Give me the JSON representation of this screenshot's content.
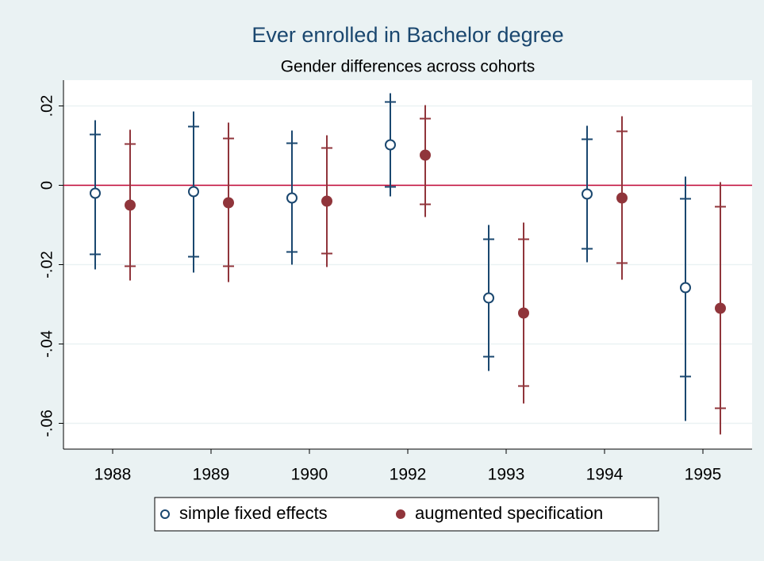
{
  "chart_data": {
    "type": "coefplot",
    "title": "Ever enrolled in Bachelor degree",
    "subtitle": "Gender differences across cohorts",
    "categories": [
      "1988",
      "1989",
      "1990",
      "1992",
      "1993",
      "1994",
      "1995"
    ],
    "series": [
      {
        "name": "simple fixed effects",
        "color": "#1a476f",
        "marker": "hollow",
        "values": [
          -0.002,
          -0.0016,
          -0.0032,
          0.0102,
          -0.0284,
          -0.0022,
          -0.0258
        ],
        "ci95_low": [
          -0.0212,
          -0.022,
          -0.02,
          -0.0028,
          -0.0468,
          -0.0194,
          -0.0594
        ],
        "ci95_high": [
          0.0164,
          0.0186,
          0.0138,
          0.0232,
          -0.01,
          0.015,
          0.0022
        ],
        "ci90_low": [
          -0.0174,
          -0.018,
          -0.0168,
          -0.0004,
          -0.0432,
          -0.016,
          -0.0482
        ],
        "ci90_high": [
          0.0128,
          0.0148,
          0.0106,
          0.021,
          -0.0136,
          0.0116,
          -0.0034
        ]
      },
      {
        "name": "augmented specification",
        "color": "#90353b",
        "marker": "filled",
        "values": [
          -0.005,
          -0.0044,
          -0.004,
          0.0076,
          -0.0322,
          -0.0032,
          -0.031
        ],
        "ci95_low": [
          -0.024,
          -0.0244,
          -0.0206,
          -0.008,
          -0.055,
          -0.0238,
          -0.0628
        ],
        "ci95_high": [
          0.014,
          0.0158,
          0.0126,
          0.0202,
          -0.0094,
          0.0174,
          0.0008
        ],
        "ci90_low": [
          -0.0204,
          -0.0204,
          -0.0172,
          -0.0048,
          -0.0506,
          -0.0196,
          -0.0562
        ],
        "ci90_high": [
          0.0104,
          0.0118,
          0.0094,
          0.0168,
          -0.0136,
          0.0136,
          -0.0054
        ]
      }
    ],
    "refline": 0,
    "refline_color": "#c10534",
    "ylim": [
      -0.0665,
      0.0265
    ],
    "yticks": [
      {
        "value": 0.02,
        "label": ".02"
      },
      0,
      {
        "value": -0.02,
        "label": "-.02"
      },
      {
        "value": -0.04,
        "label": "-.04"
      },
      {
        "value": -0.06,
        "label": "-.06"
      }
    ],
    "grid": true,
    "legend": "bottom"
  }
}
